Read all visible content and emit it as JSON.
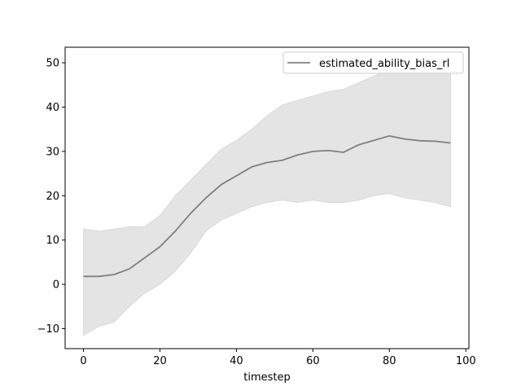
{
  "chart_data": {
    "type": "line",
    "title": "",
    "xlabel": "timestep",
    "ylabel": "",
    "xlim": [
      -4.8,
      100.8
    ],
    "ylim": [
      -14.5,
      53.5
    ],
    "xticks": [
      0,
      20,
      40,
      60,
      80,
      100
    ],
    "yticks": [
      -10,
      0,
      10,
      20,
      30,
      40,
      50
    ],
    "xtick_labels": [
      "0",
      "20",
      "40",
      "60",
      "80",
      "100"
    ],
    "ytick_labels": [
      "−10",
      "0",
      "10",
      "20",
      "30",
      "40",
      "50"
    ],
    "grid": false,
    "legend_position": "upper right",
    "series": [
      {
        "name": "estimated_ability_bias_rl",
        "color": "#808080",
        "band_color": "#e4e4e4",
        "x": [
          0,
          4,
          8,
          12,
          16,
          20,
          24,
          28,
          32,
          36,
          40,
          44,
          48,
          52,
          56,
          60,
          64,
          68,
          72,
          76,
          80,
          84,
          88,
          92,
          96
        ],
        "y": [
          1.8,
          1.8,
          2.2,
          3.5,
          6.0,
          8.5,
          12.0,
          16.0,
          19.5,
          22.5,
          24.5,
          26.5,
          27.5,
          28.0,
          29.2,
          30.0,
          30.2,
          29.8,
          31.5,
          32.5,
          33.5,
          32.8,
          32.4,
          32.3,
          31.9
        ],
        "lower": [
          -11.5,
          -9.5,
          -8.5,
          -5.0,
          -2.0,
          0.0,
          3.0,
          7.0,
          12.0,
          14.5,
          16.0,
          17.5,
          18.5,
          19.0,
          18.5,
          19.0,
          18.5,
          18.5,
          19.0,
          20.0,
          20.5,
          19.5,
          19.0,
          18.5,
          17.5
        ],
        "upper": [
          12.5,
          12.0,
          12.5,
          13.0,
          13.0,
          15.5,
          20.0,
          23.5,
          27.0,
          30.5,
          32.5,
          35.0,
          38.0,
          40.5,
          41.5,
          42.5,
          43.5,
          44.0,
          45.5,
          47.0,
          48.5,
          48.0,
          48.5,
          49.5,
          51.5
        ]
      }
    ]
  }
}
